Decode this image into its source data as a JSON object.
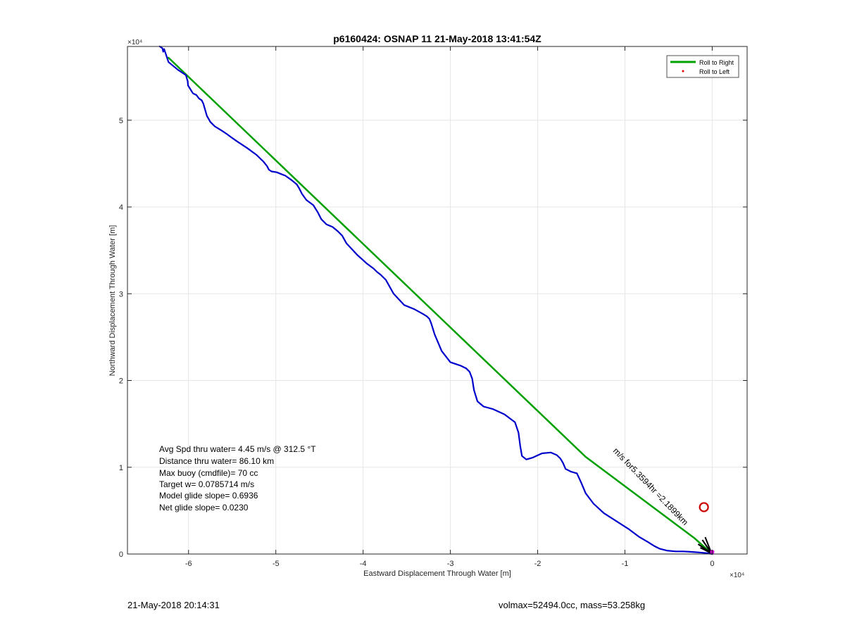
{
  "chart_data": {
    "type": "line",
    "title": "p6160424: OSNAP 11 21-May-2018 13:41:54Z",
    "xlabel": "Eastward Displacement Through Water [m]",
    "ylabel": "Northward Displacement Through Water [m]",
    "x_exponent_label": "×10⁴",
    "y_exponent_label": "×10⁴",
    "xlim": [
      -67000,
      4000
    ],
    "ylim": [
      0,
      58500
    ],
    "xticks": [
      -60000,
      -50000,
      -40000,
      -30000,
      -20000,
      -10000,
      0
    ],
    "xtick_labels": [
      "-6",
      "-5",
      "-4",
      "-3",
      "-2",
      "-1",
      "0"
    ],
    "yticks": [
      0,
      10000,
      20000,
      30000,
      40000,
      50000
    ],
    "ytick_labels": [
      "0",
      "1",
      "2",
      "3",
      "4",
      "5"
    ],
    "grid": true,
    "legend_position": "top-right",
    "legend": [
      {
        "label": "Roll to Right",
        "color": "#00a000",
        "marker": "line"
      },
      {
        "label": "Roll to Left",
        "color": "#e00000",
        "marker": "dot"
      }
    ],
    "series": [
      {
        "name": "Roll to Right",
        "color": "#00a000",
        "x": [
          -62300,
          -14500,
          -2000,
          0
        ],
        "y": [
          57200,
          11200,
          1800,
          0
        ]
      },
      {
        "color": "#0000cc",
        "x": [
          -63300,
          -63000,
          -62900,
          -62800,
          -62300,
          -61200,
          -60300,
          -60100,
          -60050,
          -59500,
          -59100,
          -58800,
          -58500,
          -58300,
          -57900,
          -57500,
          -57000,
          -56200,
          -55600,
          -55200,
          -54500,
          -53300,
          -52200,
          -51400,
          -51000,
          -50800,
          -50500,
          -49900,
          -49400,
          -48900,
          -48200,
          -47600,
          -47300,
          -47000,
          -46500,
          -45700,
          -45200,
          -44800,
          -44200,
          -43500,
          -42900,
          -42400,
          -41900,
          -40700,
          -39600,
          -38800,
          -38400,
          -38000,
          -37400,
          -36500,
          -35300,
          -34100,
          -33200,
          -32700,
          -32400,
          -32200,
          -31800,
          -31000,
          -30000,
          -28800,
          -28200,
          -27800,
          -27500,
          -27300,
          -26900,
          -26200,
          -25100,
          -23800,
          -22600,
          -22200,
          -22000,
          -21800,
          -21300,
          -20600,
          -19500,
          -18500,
          -17800,
          -17400,
          -17100,
          -16800,
          -16200,
          -15500,
          -15000,
          -14500,
          -13600,
          -12400,
          -11000,
          -9600,
          -8400,
          -7400,
          -6600,
          -6000,
          -5200,
          -4200,
          -3300,
          -2500,
          -1800,
          -1100,
          -500,
          0
        ],
        "y": [
          58500,
          58300,
          57900,
          58200,
          56700,
          55800,
          55200,
          54500,
          54000,
          53100,
          52900,
          52500,
          52300,
          51900,
          50500,
          49800,
          49300,
          48800,
          48400,
          48100,
          47600,
          46800,
          46000,
          45200,
          44700,
          44300,
          44100,
          44000,
          43800,
          43600,
          43100,
          42600,
          42100,
          41500,
          40800,
          40200,
          39400,
          38600,
          38000,
          37700,
          37200,
          36700,
          35800,
          34500,
          33500,
          32900,
          32500,
          32200,
          31600,
          30000,
          28700,
          28200,
          27700,
          27400,
          27100,
          26600,
          25300,
          23400,
          22100,
          21700,
          21400,
          21000,
          20200,
          18900,
          17600,
          17000,
          16700,
          16100,
          15200,
          14000,
          12500,
          11300,
          10900,
          11100,
          11600,
          11700,
          11400,
          11000,
          10500,
          9800,
          9500,
          9300,
          8200,
          7000,
          5800,
          4700,
          3800,
          2900,
          2000,
          1400,
          900,
          600,
          400,
          300,
          300,
          250,
          200,
          150,
          100,
          0
        ]
      }
    ],
    "marker_circle": {
      "x": -950,
      "y": 5400,
      "color": "#cc0000"
    },
    "annotations": [
      "Avg Spd thru water=  4.45 m/s @ 312.5 °T",
      "Distance thru water= 86.10 km",
      "Max buoy (cmdfile)= 70 cc",
      "Target w= 0.0785714 m/s",
      "Model glide slope= 0.6936",
      "Net glide slope= 0.0230"
    ],
    "current_label": "m/s for5.3594hr =2.1899km"
  },
  "footer": {
    "left": "21-May-2018 20:14:31",
    "right": "volmax=52494.0cc, mass=53.258kg"
  }
}
